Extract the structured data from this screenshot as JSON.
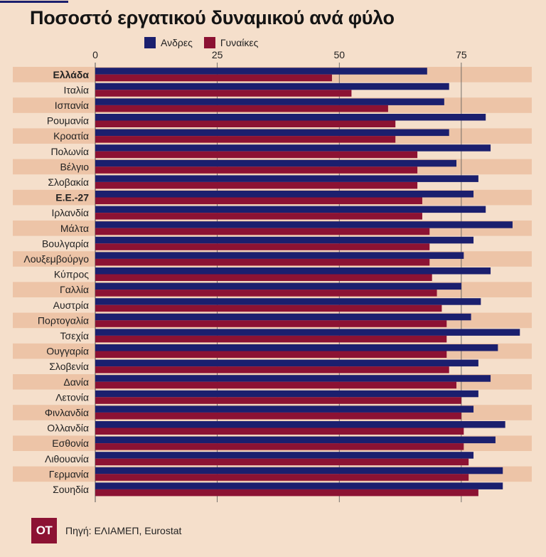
{
  "title": "Ποσοστό εργατικού δυναμικού ανά φύλο",
  "legend": {
    "men": "Ανδρες",
    "women": "Γυναίκες"
  },
  "colors": {
    "men": "#1b1f6e",
    "women": "#8c1233",
    "stripe": "#edc4a7",
    "background": "#f5dfcb",
    "axis": "#555555"
  },
  "logo": {
    "text": "OT"
  },
  "source": "Πηγή: ΕΛΙΑΜΕΠ, Eurostat",
  "chart_data": {
    "type": "bar",
    "orientation": "horizontal",
    "title": "Ποσοστό εργατικού δυναμικού ανά φύλο",
    "xlim": [
      0,
      90
    ],
    "xticks": [
      0,
      25,
      50,
      75
    ],
    "categories": [
      "Ελλάδα",
      "Ιταλία",
      "Ισπανία",
      "Ρουμανία",
      "Κροατία",
      "Πολωνία",
      "Βέλγιο",
      "Σλοβακία",
      "Ε.Ε.-27",
      "Ιρλανδία",
      "Μάλτα",
      "Βουλγαρία",
      "Λουξεμβούργο",
      "Κύπρος",
      "Γαλλία",
      "Αυστρία",
      "Πορτογαλία",
      "Τσεχία",
      "Ουγγαρία",
      "Σλοβενία",
      "Δανία",
      "Λετονία",
      "Φινλανδία",
      "Ολλανδία",
      "Εσθονία",
      "Λιθουανία",
      "Γερμανία",
      "Σουηδία"
    ],
    "bold_categories": [
      "Ελλάδα",
      "Ε.Ε.-27"
    ],
    "series": [
      {
        "name": "Ανδρες",
        "values": [
          68.0,
          72.5,
          71.5,
          80.0,
          72.5,
          81.0,
          74.0,
          78.5,
          77.5,
          80.0,
          85.5,
          77.5,
          75.5,
          81.0,
          75.0,
          79.0,
          77.0,
          87.0,
          82.5,
          78.5,
          81.0,
          78.5,
          77.5,
          84.0,
          82.0,
          77.5,
          83.5,
          83.5
        ]
      },
      {
        "name": "Γυναίκες",
        "values": [
          48.5,
          52.5,
          60.0,
          61.5,
          61.5,
          66.0,
          66.0,
          66.0,
          67.0,
          67.0,
          68.5,
          68.5,
          68.5,
          69.0,
          70.0,
          71.0,
          72.0,
          72.0,
          72.0,
          72.5,
          74.0,
          75.0,
          75.0,
          75.5,
          75.5,
          76.5,
          76.5,
          78.5
        ]
      }
    ]
  }
}
